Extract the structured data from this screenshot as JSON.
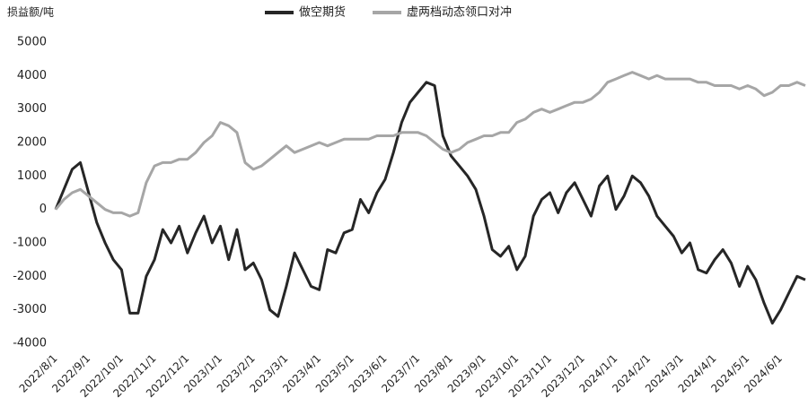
{
  "chart_data": {
    "type": "line",
    "y_label": "损益额/吨",
    "categories": [
      "2022/8/1",
      null,
      null,
      null,
      "2022/9/1",
      null,
      null,
      null,
      "2022/10/1",
      null,
      null,
      null,
      "2022/11/1",
      null,
      null,
      null,
      "2022/12/1",
      null,
      null,
      null,
      "2023/1/1",
      null,
      null,
      null,
      "2023/2/1",
      null,
      null,
      null,
      "2023/3/1",
      null,
      null,
      null,
      "2023/4/1",
      null,
      null,
      null,
      "2023/5/1",
      null,
      null,
      null,
      "2023/6/1",
      null,
      null,
      null,
      "2023/7/1",
      null,
      null,
      null,
      "2023/8/1",
      null,
      null,
      null,
      "2023/9/1",
      null,
      null,
      null,
      "2023/10/1",
      null,
      null,
      null,
      "2023/11/1",
      null,
      null,
      null,
      "2023/12/1",
      null,
      null,
      null,
      "2024/1/1",
      null,
      null,
      null,
      "2024/2/1",
      null,
      null,
      null,
      "2024/3/1",
      null,
      null,
      null,
      "2024/4/1",
      null,
      null,
      null,
      "2024/5/1",
      null,
      null,
      null,
      "2024/6/1",
      null,
      null,
      null
    ],
    "series": [
      {
        "name": "做空期货",
        "color": "#262626",
        "values": [
          0,
          600,
          1200,
          1400,
          500,
          -400,
          -1000,
          -1500,
          -1800,
          -3100,
          -3100,
          -2000,
          -1500,
          -600,
          -1000,
          -500,
          -1300,
          -700,
          -200,
          -1000,
          -500,
          -1500,
          -600,
          -1800,
          -1600,
          -2100,
          -3000,
          -3200,
          -2300,
          -1300,
          -1800,
          -2300,
          -2400,
          -1200,
          -1300,
          -700,
          -600,
          300,
          -100,
          500,
          900,
          1700,
          2600,
          3200,
          3500,
          3800,
          3700,
          2200,
          1600,
          1300,
          1000,
          600,
          -200,
          -1200,
          -1400,
          -1100,
          -1800,
          -1400,
          -200,
          300,
          500,
          -100,
          500,
          800,
          300,
          -200,
          700,
          1000,
          0,
          400,
          1000,
          800,
          400,
          -200,
          -500,
          -800,
          -1300,
          -1000,
          -1800,
          -1900,
          -1500,
          -1200,
          -1600,
          -2300,
          -1700,
          -2100,
          -2800,
          -3400,
          -3000,
          -2500,
          -2000,
          -2100
        ]
      },
      {
        "name": "虚两档动态领口对冲",
        "color": "#a6a6a6",
        "values": [
          0,
          300,
          500,
          600,
          400,
          200,
          0,
          -100,
          -100,
          -200,
          -100,
          800,
          1300,
          1400,
          1400,
          1500,
          1500,
          1700,
          2000,
          2200,
          2600,
          2500,
          2300,
          1400,
          1200,
          1300,
          1500,
          1700,
          1900,
          1700,
          1800,
          1900,
          2000,
          1900,
          2000,
          2100,
          2100,
          2100,
          2100,
          2200,
          2200,
          2200,
          2300,
          2300,
          2300,
          2200,
          2000,
          1800,
          1700,
          1800,
          2000,
          2100,
          2200,
          2200,
          2300,
          2300,
          2600,
          2700,
          2900,
          3000,
          2900,
          3000,
          3100,
          3200,
          3200,
          3300,
          3500,
          3800,
          3900,
          4000,
          4100,
          4000,
          3900,
          4000,
          3900,
          3900,
          3900,
          3900,
          3800,
          3800,
          3700,
          3700,
          3700,
          3600,
          3700,
          3600,
          3400,
          3500,
          3700,
          3700,
          3800,
          3700
        ]
      }
    ],
    "ylim": [
      -4000,
      5000
    ],
    "yticks": [
      -4000,
      -3000,
      -2000,
      -1000,
      0,
      1000,
      2000,
      3000,
      4000,
      5000
    ]
  }
}
